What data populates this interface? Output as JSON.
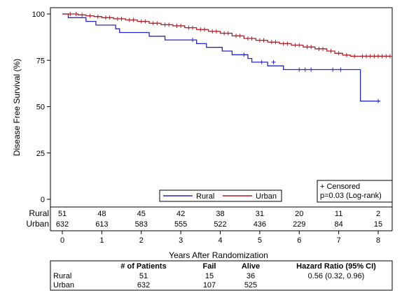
{
  "chart_data": {
    "type": "line",
    "subtype": "kaplan-meier",
    "xlabel": "Years After Randomization",
    "ylabel": "Disease Free Survival (%)",
    "xlim": [
      0,
      8.3
    ],
    "ylim": [
      0,
      100
    ],
    "xticks": [
      "0",
      "1",
      "2",
      "3",
      "4",
      "5",
      "6",
      "7",
      "8"
    ],
    "yticks": [
      "0",
      "25",
      "50",
      "75",
      "100"
    ],
    "series": [
      {
        "name": "Rural",
        "color": "#2626cc",
        "steps": [
          [
            0,
            100
          ],
          [
            0.15,
            98
          ],
          [
            0.6,
            96
          ],
          [
            0.85,
            94
          ],
          [
            1.35,
            92
          ],
          [
            1.45,
            90
          ],
          [
            2.2,
            88
          ],
          [
            2.6,
            86
          ],
          [
            3.4,
            84
          ],
          [
            3.65,
            82
          ],
          [
            4.05,
            80
          ],
          [
            4.3,
            78
          ],
          [
            4.7,
            76
          ],
          [
            4.8,
            74
          ],
          [
            5.2,
            72
          ],
          [
            5.6,
            70
          ],
          [
            7.5,
            70
          ],
          [
            7.55,
            53
          ],
          [
            8.05,
            53
          ]
        ],
        "censored": [
          [
            3.3,
            86
          ],
          [
            4.6,
            78
          ],
          [
            5.05,
            74
          ],
          [
            5.35,
            74
          ],
          [
            6.0,
            70
          ],
          [
            6.15,
            70
          ],
          [
            6.3,
            70
          ],
          [
            6.85,
            70
          ],
          [
            7.05,
            70
          ],
          [
            8.0,
            53
          ]
        ]
      },
      {
        "name": "Urban",
        "color": "#b01e26",
        "steps": [
          [
            0,
            100
          ],
          [
            0.25,
            100
          ],
          [
            0.4,
            99.5
          ],
          [
            0.6,
            99
          ],
          [
            0.8,
            98.6
          ],
          [
            1.0,
            98
          ],
          [
            1.3,
            97.4
          ],
          [
            1.6,
            96.8
          ],
          [
            1.9,
            96
          ],
          [
            2.2,
            95
          ],
          [
            2.5,
            94.2
          ],
          [
            2.8,
            93.6
          ],
          [
            3.1,
            92.6
          ],
          [
            3.4,
            91.6
          ],
          [
            3.7,
            90.6
          ],
          [
            4.0,
            89.6
          ],
          [
            4.3,
            88.2
          ],
          [
            4.6,
            86.8
          ],
          [
            4.9,
            85.8
          ],
          [
            5.2,
            84.8
          ],
          [
            5.5,
            84.0
          ],
          [
            5.8,
            83.2
          ],
          [
            6.1,
            82.2
          ],
          [
            6.4,
            81.2
          ],
          [
            6.7,
            80.0
          ],
          [
            6.9,
            78.8
          ],
          [
            7.1,
            77.8
          ],
          [
            7.3,
            77.2
          ],
          [
            7.5,
            77.2
          ],
          [
            8.3,
            77.2
          ]
        ],
        "censored": [
          [
            0.2,
            100
          ],
          [
            0.35,
            100
          ],
          [
            0.5,
            99.5
          ],
          [
            0.7,
            99
          ],
          [
            0.9,
            98.6
          ],
          [
            1.1,
            98
          ],
          [
            1.2,
            98
          ],
          [
            1.4,
            97.4
          ],
          [
            1.5,
            97.4
          ],
          [
            1.7,
            96.8
          ],
          [
            1.8,
            96.8
          ],
          [
            2.0,
            96
          ],
          [
            2.1,
            96
          ],
          [
            2.3,
            95
          ],
          [
            2.4,
            95
          ],
          [
            2.6,
            94.2
          ],
          [
            2.7,
            94.2
          ],
          [
            2.9,
            93.6
          ],
          [
            3.0,
            93.6
          ],
          [
            3.2,
            92.6
          ],
          [
            3.3,
            92.6
          ],
          [
            3.5,
            91.6
          ],
          [
            3.6,
            91.6
          ],
          [
            3.8,
            90.6
          ],
          [
            3.9,
            90.6
          ],
          [
            4.1,
            89.6
          ],
          [
            4.2,
            89.6
          ],
          [
            4.4,
            88.2
          ],
          [
            4.5,
            88.2
          ],
          [
            4.7,
            86.8
          ],
          [
            4.8,
            86.8
          ],
          [
            5.0,
            85.8
          ],
          [
            5.1,
            85.8
          ],
          [
            5.3,
            84.8
          ],
          [
            5.4,
            84.8
          ],
          [
            5.6,
            84.0
          ],
          [
            5.7,
            84.0
          ],
          [
            5.9,
            83.2
          ],
          [
            6.0,
            83.2
          ],
          [
            6.2,
            82.2
          ],
          [
            6.3,
            82.2
          ],
          [
            6.5,
            81.2
          ],
          [
            6.6,
            81.2
          ],
          [
            6.8,
            80.0
          ],
          [
            7.0,
            78.8
          ],
          [
            7.2,
            77.8
          ],
          [
            7.4,
            77.2
          ],
          [
            7.6,
            77.2
          ],
          [
            7.7,
            77.2
          ],
          [
            7.8,
            77.2
          ],
          [
            7.9,
            77.2
          ],
          [
            8.0,
            77.2
          ],
          [
            8.1,
            77.2
          ],
          [
            8.2,
            77.2
          ],
          [
            8.3,
            77.2
          ]
        ]
      }
    ],
    "legend": {
      "position": "bottom-center",
      "entries": [
        "Rural",
        "Urban"
      ]
    },
    "annotation": {
      "position": "bottom-right",
      "lines": [
        "+ Censored",
        "p=0.03 (Log-rank)"
      ]
    },
    "at_risk": {
      "times": [
        0,
        1,
        2,
        3,
        4,
        5,
        6,
        7,
        8
      ],
      "rows": [
        {
          "label": "Rural",
          "values": [
            "51",
            "48",
            "45",
            "42",
            "38",
            "31",
            "20",
            "11",
            "2"
          ]
        },
        {
          "label": "Urban",
          "values": [
            "632",
            "613",
            "583",
            "555",
            "522",
            "436",
            "229",
            "84",
            "15"
          ]
        }
      ]
    },
    "summary_table": {
      "headers": [
        "",
        "# of Patients",
        "Fail",
        "Alive",
        "Hazard Ratio (95% CI)"
      ],
      "rows": [
        [
          "Rural",
          "51",
          "15",
          "36",
          "0.56 (0.32, 0.96)"
        ],
        [
          "Urban",
          "632",
          "107",
          "525",
          ""
        ]
      ]
    }
  }
}
